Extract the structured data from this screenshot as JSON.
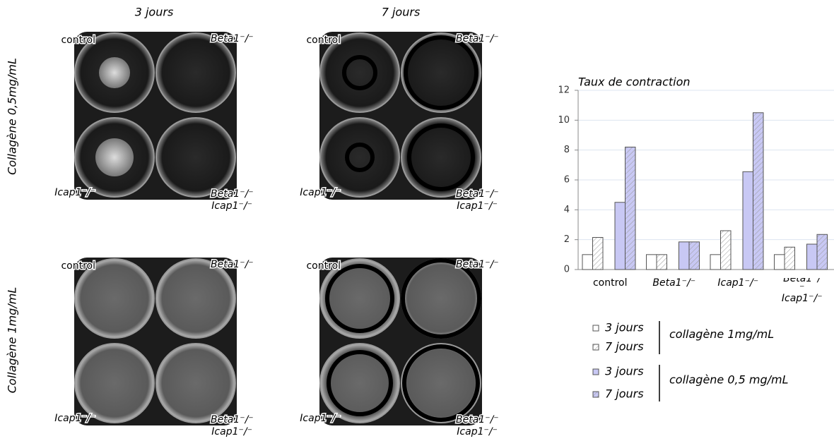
{
  "figure": {
    "columns": [
      "3 jours",
      "7 jours"
    ],
    "rows": [
      "Collagène 0,5mg/mL",
      "Collagène 1mg/mL"
    ],
    "well_labels": {
      "control": "control",
      "beta1": "Beta1⁻/⁻",
      "icap1": "Icap1⁻/⁻",
      "double": [
        "Beta1⁻/⁻",
        "Icap1⁻/⁻"
      ]
    }
  },
  "chart_data": {
    "type": "bar",
    "title": "Taux de contraction",
    "categories": [
      "control",
      "Beta1⁻/⁻",
      "Icap1⁻/⁻",
      "Beta1⁻/⁻ Icap1⁻/⁻"
    ],
    "series": [
      {
        "name": "3 jours",
        "group": "collagène 1mg/mL",
        "color": "#ffffff",
        "hatch": false,
        "values": [
          1,
          1,
          1,
          1
        ]
      },
      {
        "name": "7 jours",
        "group": "collagène 1mg/mL",
        "color": "#ffffff",
        "hatch": true,
        "values": [
          2.15,
          1,
          2.6,
          1.5
        ]
      },
      {
        "name": "3 jours",
        "group": "collagène 0,5 mg/mL",
        "color": "#c8c8f4",
        "hatch": false,
        "values": [
          4.5,
          1.85,
          6.55,
          1.7
        ]
      },
      {
        "name": "7 jours",
        "group": "collagène 0,5 mg/mL",
        "color": "#c8c8f4",
        "hatch": true,
        "values": [
          8.2,
          1.85,
          10.5,
          2.35
        ]
      }
    ],
    "ylim": [
      0,
      12
    ],
    "yticks": [
      0,
      2,
      4,
      6,
      8,
      10,
      12
    ],
    "grid": true
  }
}
